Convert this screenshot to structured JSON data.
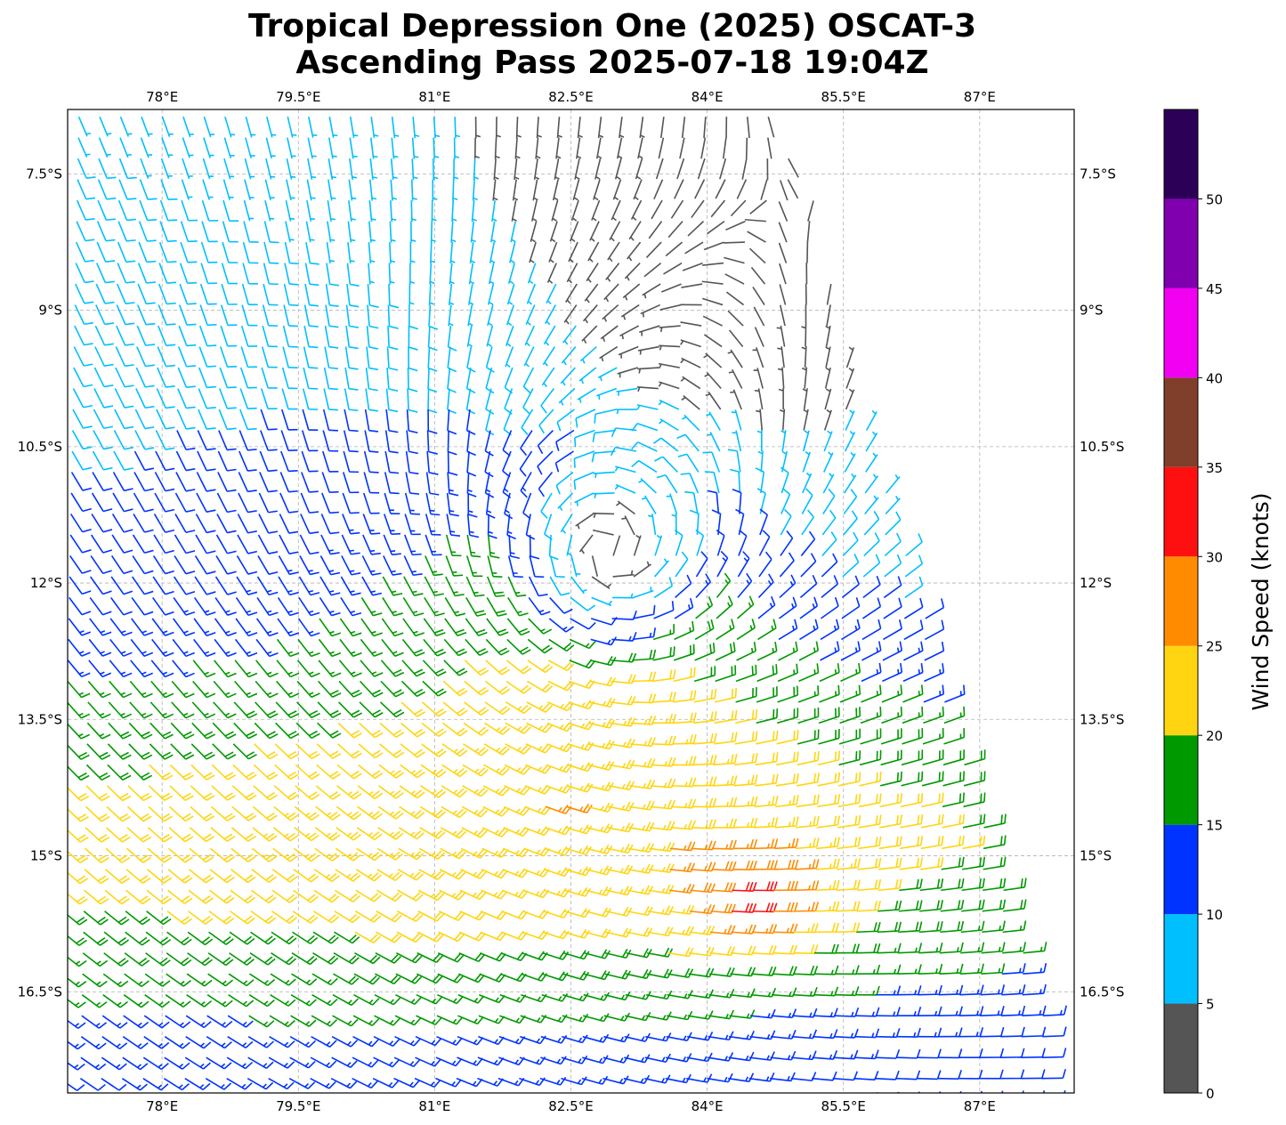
{
  "chart_data": {
    "type": "wind_barb_map",
    "title": [
      "Tropical Depression One (2025) OSCAT-3",
      "Ascending Pass 2025-07-18 19:04Z"
    ],
    "lon_range": [
      76.96,
      88.04
    ],
    "lat_range": [
      -17.61,
      -6.79
    ],
    "lon_ticks": [
      78,
      79.5,
      81,
      82.5,
      84,
      85.5,
      87
    ],
    "lon_tick_labels": [
      "78°E",
      "79.5°E",
      "81°E",
      "82.5°E",
      "84°E",
      "85.5°E",
      "87°E"
    ],
    "lat_ticks": [
      -7.5,
      -9,
      -10.5,
      -12,
      -13.5,
      -15,
      -16.5
    ],
    "lat_tick_labels": [
      "7.5°S",
      "9°S",
      "10.5°S",
      "12°S",
      "13.5°S",
      "15°S",
      "16.5°S"
    ],
    "grid": true,
    "colorbar": {
      "label": "Wind Speed (knots)",
      "levels": [
        0,
        5,
        10,
        15,
        20,
        25,
        30,
        35,
        40,
        45,
        50,
        55
      ],
      "tick_labels": [
        "0",
        "5",
        "10",
        "15",
        "20",
        "25",
        "30",
        "35",
        "40",
        "45",
        "50"
      ],
      "colors": [
        "#555555",
        "#00bfff",
        "#0033ff",
        "#009900",
        "#ffd511",
        "#ff8c00",
        "#ff1010",
        "#7f3f2a",
        "#f200f2",
        "#8000b0",
        "#2d0058"
      ]
    },
    "wind_field": {
      "vortex_center_lon": 82.9,
      "vortex_center_lat": -11.7,
      "vortex_max_kt": 14,
      "vortex_radius_deg": 1.3,
      "background_u_kt": -6,
      "background_v_kt": 3,
      "southern_band_lat": -14.8,
      "southern_band_kt": 10,
      "max_wind_lon": 84.4,
      "max_wind_lat": -15.5,
      "max_wind_extra_kt": 10,
      "swath_right_edge": [
        [
          84.75,
          -6.79
        ],
        [
          87.95,
          -17.61
        ]
      ],
      "barb_spacing_deg": 0.23
    }
  }
}
